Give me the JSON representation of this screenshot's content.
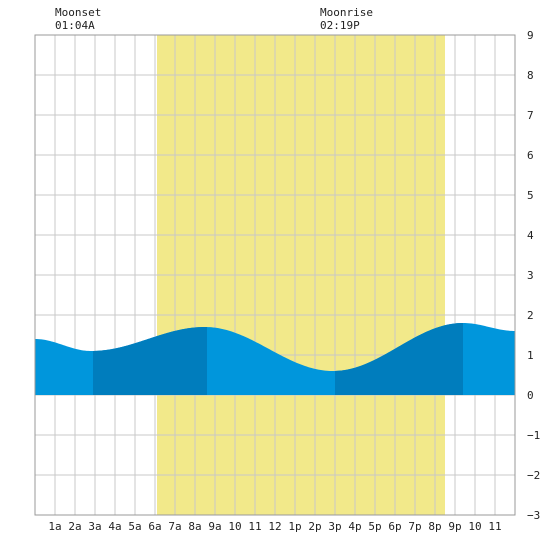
{
  "moon": {
    "moonset": {
      "label": "Moonset",
      "time": "01:04A"
    },
    "moonrise": {
      "label": "Moonrise",
      "time": "02:19P"
    }
  },
  "colors": {
    "daylight": "#f2e98a",
    "tide_light": "#0096dc",
    "tide_dark": "#007dbd",
    "grid": "#c8c8c8",
    "frame": "#999999"
  },
  "chart_data": {
    "type": "area",
    "title": "",
    "xlabel": "",
    "ylabel": "",
    "xlim": [
      0,
      24
    ],
    "ylim": [
      -3,
      9
    ],
    "grid": true,
    "x_tick_labels": [
      "1a",
      "2a",
      "3a",
      "4a",
      "5a",
      "6a",
      "7a",
      "8a",
      "9a",
      "10",
      "11",
      "12",
      "1p",
      "2p",
      "3p",
      "4p",
      "5p",
      "6p",
      "7p",
      "8p",
      "9p",
      "10",
      "11"
    ],
    "y_ticks": [
      -3,
      -2,
      -1,
      0,
      1,
      2,
      3,
      4,
      5,
      6,
      7,
      8,
      9
    ],
    "daylight": {
      "start_hour": 6.1,
      "end_hour": 20.5
    },
    "moonset_hour": 1.07,
    "moonrise_hour": 14.32,
    "tide_points": [
      [
        0.0,
        1.4
      ],
      [
        2.8,
        1.1
      ],
      [
        8.5,
        1.7
      ],
      [
        14.9,
        0.6
      ],
      [
        21.4,
        1.8
      ],
      [
        24.0,
        1.6
      ]
    ],
    "shade_bands": [
      [
        2.9,
        8.6
      ],
      [
        15.0,
        21.4
      ]
    ]
  }
}
